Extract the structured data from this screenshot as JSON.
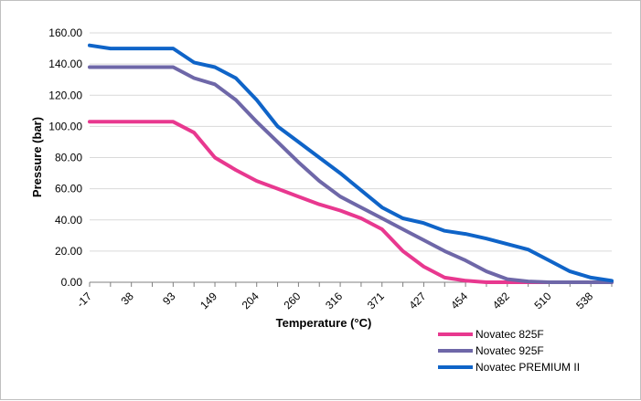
{
  "chart_data": {
    "type": "line",
    "xlabel": "Temperature (°C)",
    "ylabel": "Pressure (bar)",
    "ylim": [
      0,
      160
    ],
    "yticks": [
      "0.00",
      "20.00",
      "40.00",
      "60.00",
      "80.00",
      "100.00",
      "120.00",
      "140.00",
      "160.00"
    ],
    "categories": [
      "-17",
      "10",
      "38",
      "66",
      "93",
      "121",
      "149",
      "177",
      "204",
      "232",
      "260",
      "288",
      "316",
      "343",
      "371",
      "399",
      "427",
      "440",
      "454",
      "468",
      "482",
      "496",
      "510",
      "524",
      "538",
      "552"
    ],
    "category_labels_shown": [
      "-17",
      "38",
      "93",
      "149",
      "204",
      "260",
      "316",
      "371",
      "427",
      "454",
      "482",
      "510",
      "538"
    ],
    "grid": "horizontal",
    "legend_position": "bottom-right",
    "series": [
      {
        "name": "Novatec 825F",
        "color": "#e8388f",
        "values": [
          103,
          103,
          103,
          103,
          103,
          96,
          80,
          72,
          65,
          60,
          55,
          50,
          46,
          41,
          34,
          20,
          10,
          3,
          1,
          0,
          0,
          0,
          0,
          0,
          0,
          0
        ]
      },
      {
        "name": "Novatec 925F",
        "color": "#6e67a8",
        "values": [
          138,
          138,
          138,
          138,
          138,
          131,
          127,
          117,
          103,
          90,
          77,
          65,
          55,
          48,
          41,
          34,
          27,
          20,
          14,
          7,
          2,
          0.5,
          0,
          0,
          0,
          0
        ]
      },
      {
        "name": "Novatec PREMIUM II",
        "color": "#0f64c8",
        "values": [
          152,
          150,
          150,
          150,
          150,
          141,
          138,
          131,
          117,
          100,
          90,
          80,
          70,
          59,
          48,
          41,
          38,
          33,
          31,
          28,
          24.5,
          21,
          14,
          7,
          3,
          1
        ]
      }
    ]
  }
}
